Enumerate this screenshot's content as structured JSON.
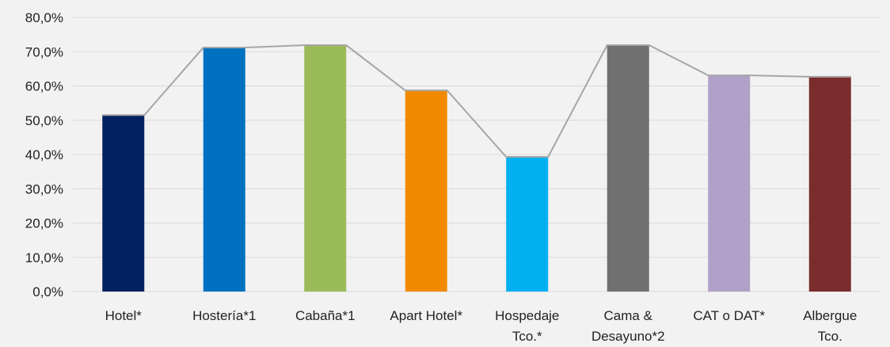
{
  "chart_data": {
    "type": "bar",
    "categories": [
      [
        "Hotel*"
      ],
      [
        "Hostería*1"
      ],
      [
        "Cabaña*1"
      ],
      [
        "Apart Hotel*"
      ],
      [
        "Hospedaje",
        "Tco.*"
      ],
      [
        "Cama &",
        "Desayuno*2"
      ],
      [
        "CAT o DAT*"
      ],
      [
        "Albergue",
        "Tco."
      ]
    ],
    "values": [
      51.5,
      71.2,
      71.9,
      58.7,
      39.3,
      71.9,
      63.1,
      62.7
    ],
    "colors": [
      "#002060",
      "#0070c0",
      "#9bbb59",
      "#f28a00",
      "#00b0f0",
      "#707070",
      "#b1a0c7",
      "#7b2c2c"
    ],
    "overlay_line_color": "#a6a6a6",
    "grid": true,
    "ylim": [
      0,
      80
    ],
    "yticks": [
      "0,0%",
      "10,0%",
      "20,0%",
      "30,0%",
      "40,0%",
      "50,0%",
      "60,0%",
      "70,0%",
      "80,0%"
    ],
    "title": "",
    "xlabel": "",
    "ylabel": "",
    "legend": "none"
  }
}
